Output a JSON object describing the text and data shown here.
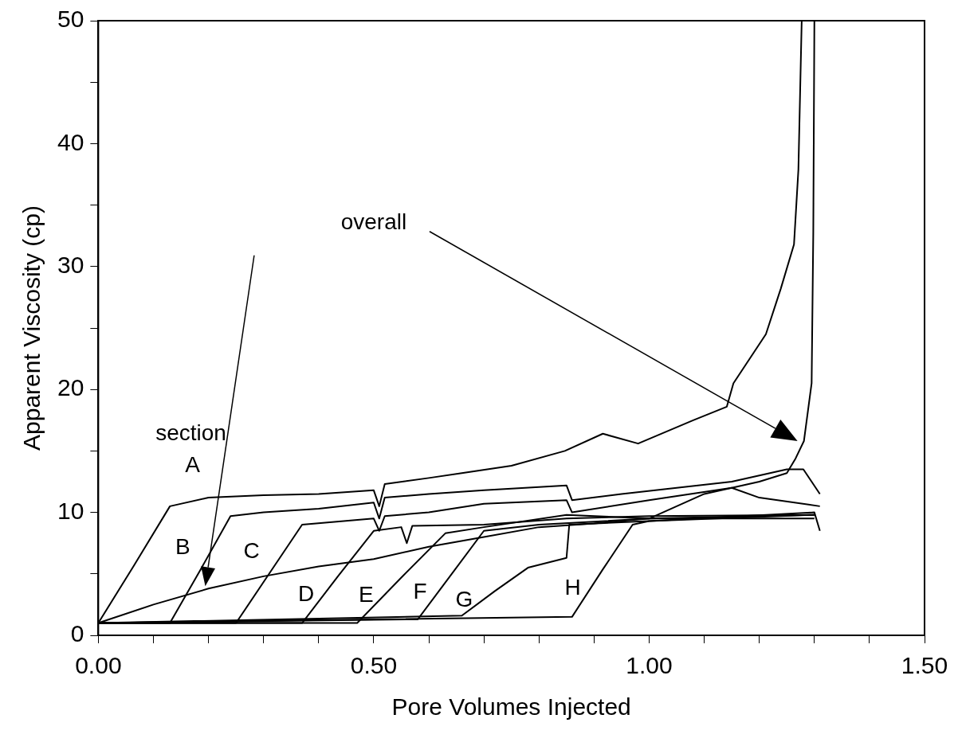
{
  "chart_data": {
    "type": "line",
    "xlabel": "Pore Volumes Injected",
    "ylabel": "Apparent Viscosity (cp)",
    "xlim": [
      0,
      1.5
    ],
    "ylim": [
      0,
      50
    ],
    "xticks": [
      {
        "value": 0,
        "label": "0.00"
      },
      {
        "value": 0.1,
        "label": null
      },
      {
        "value": 0.2,
        "label": null
      },
      {
        "value": 0.3,
        "label": null
      },
      {
        "value": 0.4,
        "label": null
      },
      {
        "value": 0.5,
        "label": "0.50"
      },
      {
        "value": 0.6,
        "label": null
      },
      {
        "value": 0.7,
        "label": null
      },
      {
        "value": 0.8,
        "label": null
      },
      {
        "value": 0.9,
        "label": null
      },
      {
        "value": 1,
        "label": "1.00"
      },
      {
        "value": 1.1,
        "label": null
      },
      {
        "value": 1.2,
        "label": null
      },
      {
        "value": 1.3,
        "label": null
      },
      {
        "value": 1.4,
        "label": null
      },
      {
        "value": 1.5,
        "label": "1.50"
      }
    ],
    "yticks": [
      0,
      {
        "value": 5,
        "label": null
      },
      10,
      {
        "value": 15,
        "label": null
      },
      20,
      {
        "value": 25,
        "label": null
      },
      30,
      {
        "value": 35,
        "label": null
      },
      40,
      {
        "value": 45,
        "label": null
      },
      50
    ],
    "grid": false,
    "legend": false,
    "marker": "none",
    "line_style": "solid",
    "annotations": [
      "section",
      "overall"
    ],
    "series": [
      {
        "name": "A",
        "color": "#000000",
        "x": [
          0,
          0.065,
          0.13,
          0.2,
          0.3,
          0.4,
          0.5,
          0.51,
          0.52,
          0.6,
          0.66,
          0.75,
          0.847,
          0.916,
          0.98,
          1.08,
          1.141,
          1.153,
          1.212,
          1.239,
          1.263,
          1.271,
          1.277
        ],
        "values": [
          1,
          5.7,
          10.5,
          11.2,
          11.4,
          11.5,
          11.8,
          10.5,
          12.3,
          12.8,
          13.2,
          13.8,
          15,
          16.4,
          15.6,
          17.5,
          18.6,
          20.5,
          24.5,
          28.2,
          31.8,
          37.9,
          50
        ]
      },
      {
        "name": "B",
        "color": "#000000",
        "x": [
          0,
          0.13,
          0.185,
          0.24,
          0.3,
          0.4,
          0.5,
          0.51,
          0.52,
          0.6,
          0.7,
          0.85,
          0.86,
          0.95,
          1.05,
          1.15,
          1.25,
          1.28,
          1.31
        ],
        "values": [
          1,
          1,
          5.3,
          9.7,
          10,
          10.3,
          10.8,
          9.5,
          11.2,
          11.5,
          11.8,
          12.2,
          11,
          11.5,
          12,
          12.5,
          13.5,
          13.5,
          11.5
        ]
      },
      {
        "name": "C",
        "color": "#000000",
        "x": [
          0,
          0.25,
          0.31,
          0.37,
          0.5,
          0.51,
          0.52,
          0.6,
          0.7,
          0.85,
          0.86,
          1,
          1.15,
          1.2,
          1.31
        ],
        "values": [
          1,
          1,
          5,
          9,
          9.5,
          8.5,
          9.7,
          10,
          10.7,
          11,
          10,
          11,
          12,
          11.2,
          10.5
        ]
      },
      {
        "name": "D",
        "color": "#000000",
        "x": [
          0,
          0.37,
          0.435,
          0.5,
          0.55,
          0.56,
          0.57,
          0.7,
          0.85,
          1,
          1.3
        ],
        "values": [
          1,
          1,
          4.8,
          8.5,
          8.8,
          7.5,
          8.9,
          9,
          9.5,
          9.7,
          9.8
        ]
      },
      {
        "name": "E",
        "color": "#000000",
        "x": [
          0,
          0.47,
          0.55,
          0.63,
          0.7,
          0.85,
          1,
          1.3
        ],
        "values": [
          1,
          1,
          4.7,
          8.3,
          8.8,
          9.8,
          9.5,
          9.5
        ]
      },
      {
        "name": "F",
        "color": "#000000",
        "x": [
          0,
          0.58,
          0.64,
          0.7,
          0.8,
          1,
          1.3
        ],
        "values": [
          1,
          1.3,
          4.9,
          8.5,
          9,
          9.5,
          9.8
        ]
      },
      {
        "name": "G",
        "color": "#000000",
        "x": [
          0,
          0.66,
          0.72,
          0.78,
          0.85,
          0.855,
          1,
          1.3
        ],
        "values": [
          1,
          1.6,
          3.6,
          5.5,
          6.3,
          9,
          9.3,
          9.8
        ]
      },
      {
        "name": "H",
        "color": "#000000",
        "x": [
          0,
          0.86,
          0.915,
          0.97,
          1,
          1.3,
          1.31
        ],
        "values": [
          1,
          1.5,
          5.3,
          9,
          9.3,
          10,
          8.5
        ]
      },
      {
        "color": "#000000",
        "x": [
          0,
          0.1,
          0.2,
          0.3,
          0.4,
          0.5,
          0.6,
          0.7,
          0.8,
          0.9,
          1,
          1.1,
          1.2,
          1.25,
          1.266,
          1.281,
          1.295,
          1.298,
          1.3
        ],
        "values": [
          1,
          2.5,
          3.8,
          4.8,
          5.6,
          6.2,
          7.2,
          8,
          8.8,
          9.1,
          9.5,
          11.5,
          12.5,
          13.2,
          14.4,
          15.8,
          20.5,
          32.7,
          50
        ]
      }
    ]
  }
}
